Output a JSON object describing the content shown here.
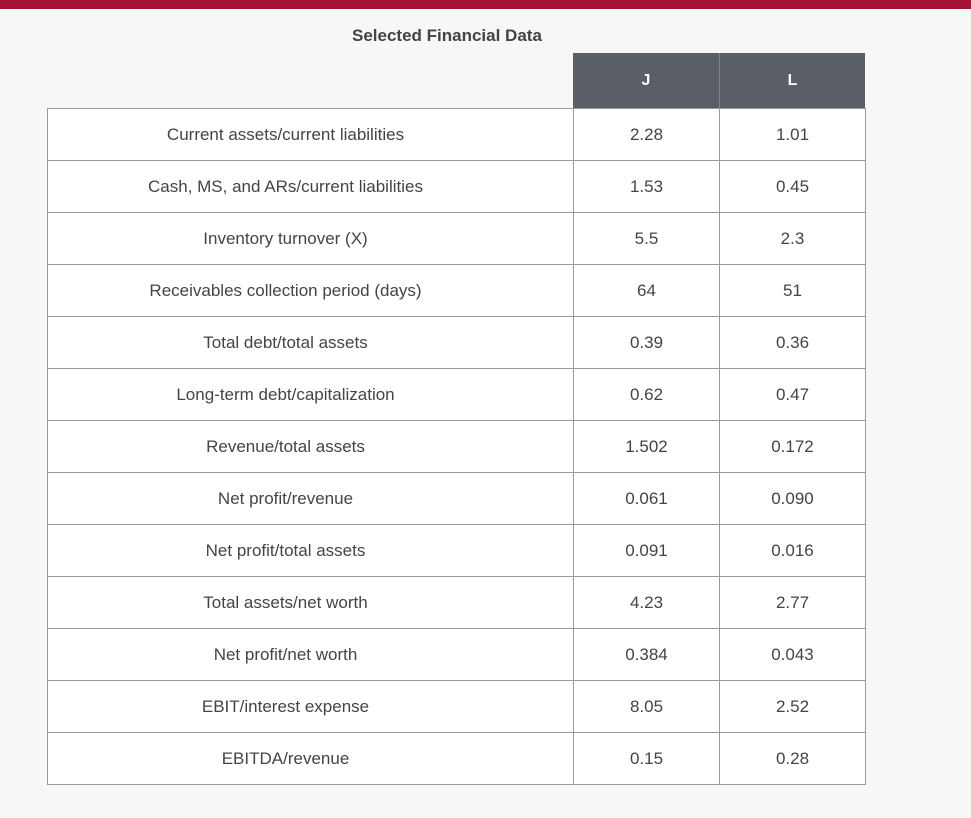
{
  "title": "Selected Financial Data",
  "columns": [
    "J",
    "L"
  ],
  "rows": [
    {
      "label": "Current assets/current liabilities",
      "j": "2.28",
      "l": "1.01"
    },
    {
      "label": "Cash, MS, and ARs/current liabilities",
      "j": "1.53",
      "l": "0.45"
    },
    {
      "label": "Inventory turnover (X)",
      "j": "5.5",
      "l": "2.3"
    },
    {
      "label": "Receivables collection period (days)",
      "j": "64",
      "l": "51"
    },
    {
      "label": "Total debt/total assets",
      "j": "0.39",
      "l": "0.36"
    },
    {
      "label": "Long-term debt/capitalization",
      "j": "0.62",
      "l": "0.47"
    },
    {
      "label": "Revenue/total assets",
      "j": "1.502",
      "l": "0.172"
    },
    {
      "label": "Net profit/revenue",
      "j": "0.061",
      "l": "0.090"
    },
    {
      "label": "Net profit/total assets",
      "j": "0.091",
      "l": "0.016"
    },
    {
      "label": "Total assets/net worth",
      "j": "4.23",
      "l": "2.77"
    },
    {
      "label": "Net profit/net worth",
      "j": "0.384",
      "l": "0.043"
    },
    {
      "label": "EBIT/interest expense",
      "j": "8.05",
      "l": "2.52"
    },
    {
      "label": "EBITDA/revenue",
      "j": "0.15",
      "l": "0.28"
    }
  ],
  "colors": {
    "accent_bar": "#a31434",
    "header_bg": "#5a5e66",
    "header_text": "#ffffff"
  }
}
